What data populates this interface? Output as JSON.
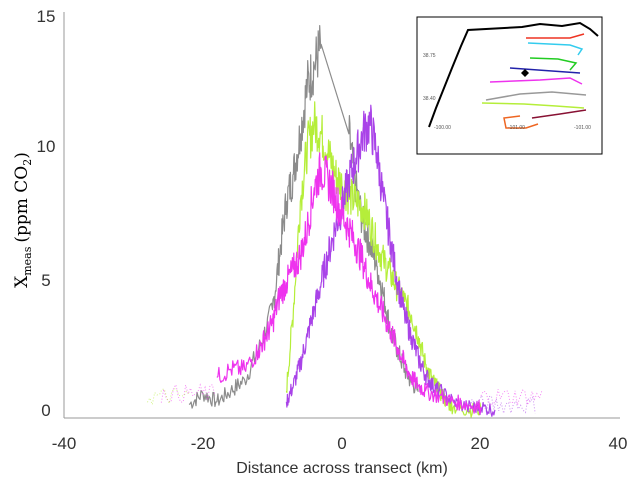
{
  "chart_data": {
    "type": "line",
    "title": "",
    "xlabel": "Distance across transect (km)",
    "ylabel": {
      "symbol": "X",
      "subscript": "meas",
      "unit_prefix": "(ppm CO",
      "unit_sub": "2",
      "unit_suffix": ")"
    },
    "xlim": [
      -40,
      40
    ],
    "ylim": [
      0,
      15
    ],
    "x_ticks": [
      "-40",
      "-20",
      "0",
      "20",
      "40"
    ],
    "y_ticks": [
      "0",
      "5",
      "10",
      "15"
    ],
    "grid": false,
    "legend": "none",
    "series": [
      {
        "color": "#8c8c8c",
        "points": [
          [
            -22,
            0.5
          ],
          [
            -20,
            0.9
          ],
          [
            -18,
            0.6
          ],
          [
            -16,
            1.0
          ],
          [
            -14,
            1.4
          ],
          [
            -12,
            2.5
          ],
          [
            -10,
            4.0
          ],
          [
            -9,
            6.0
          ],
          [
            -8,
            8.0
          ],
          [
            -7,
            9.0
          ],
          [
            -6,
            10.5
          ],
          [
            -5,
            12.3
          ],
          [
            -4,
            13.0
          ],
          [
            -3,
            13.8
          ],
          [
            1,
            10.5
          ],
          [
            2,
            8.5
          ],
          [
            3,
            7.2
          ],
          [
            4,
            6.5
          ],
          [
            5,
            5.6
          ],
          [
            6,
            4.5
          ],
          [
            7,
            3.2
          ],
          [
            8,
            2.5
          ],
          [
            9,
            1.8
          ],
          [
            10,
            1.3
          ],
          [
            11,
            1.0
          ]
        ]
      },
      {
        "color": "#b5ee3a",
        "points": [
          [
            -8,
            1.0
          ],
          [
            -7,
            4.0
          ],
          [
            -6,
            8.0
          ],
          [
            -5,
            10.0
          ],
          [
            -4,
            10.9
          ],
          [
            -3,
            10.5
          ],
          [
            -2,
            9.8
          ],
          [
            -1,
            9.0
          ],
          [
            0,
            8.6
          ],
          [
            1,
            8.2
          ],
          [
            2,
            8.0
          ],
          [
            3,
            7.8
          ],
          [
            4,
            7.2
          ],
          [
            5,
            6.4
          ],
          [
            6,
            5.8
          ],
          [
            7,
            5.3
          ],
          [
            8,
            4.8
          ],
          [
            9,
            4.3
          ],
          [
            10,
            3.8
          ],
          [
            11,
            3.0
          ],
          [
            12,
            2.0
          ],
          [
            13,
            1.4
          ],
          [
            14,
            1.0
          ],
          [
            15,
            0.6
          ],
          [
            16,
            0.4
          ],
          [
            18,
            0.3
          ],
          [
            20,
            0.3
          ]
        ]
      },
      {
        "color": "#a943e8",
        "points": [
          [
            -8,
            0.6
          ],
          [
            -7,
            1.2
          ],
          [
            -6,
            2.0
          ],
          [
            -5,
            3.0
          ],
          [
            -4,
            4.0
          ],
          [
            -3,
            5.0
          ],
          [
            -2,
            6.0
          ],
          [
            -1,
            7.0
          ],
          [
            0,
            7.8
          ],
          [
            1,
            8.8
          ],
          [
            2,
            9.6
          ],
          [
            3,
            10.5
          ],
          [
            4,
            10.9
          ],
          [
            5,
            9.8
          ],
          [
            6,
            8.0
          ],
          [
            7,
            6.5
          ],
          [
            8,
            5.0
          ],
          [
            9,
            3.8
          ],
          [
            10,
            3.0
          ],
          [
            11,
            2.2
          ],
          [
            12,
            1.6
          ],
          [
            13,
            1.2
          ],
          [
            14,
            1.0
          ],
          [
            16,
            0.6
          ],
          [
            18,
            0.4
          ],
          [
            20,
            0.4
          ],
          [
            22,
            0.3
          ]
        ]
      },
      {
        "color": "#ee33ee",
        "points": [
          [
            -18,
            1.5
          ],
          [
            -16,
            1.8
          ],
          [
            -14,
            1.8
          ],
          [
            -12,
            2.5
          ],
          [
            -11,
            3.0
          ],
          [
            -10,
            3.5
          ],
          [
            -9,
            4.5
          ],
          [
            -8,
            5.0
          ],
          [
            -7,
            5.5
          ],
          [
            -6,
            6.0
          ],
          [
            -5,
            7.0
          ],
          [
            -4,
            8.5
          ],
          [
            -3,
            9.2
          ],
          [
            -2,
            8.8
          ],
          [
            -1,
            8.2
          ],
          [
            0,
            7.5
          ],
          [
            1,
            7.0
          ],
          [
            2,
            6.4
          ],
          [
            3,
            5.8
          ],
          [
            4,
            5.0
          ],
          [
            5,
            4.4
          ],
          [
            6,
            3.8
          ],
          [
            7,
            3.2
          ],
          [
            8,
            2.6
          ],
          [
            9,
            2.0
          ],
          [
            10,
            1.5
          ],
          [
            11,
            1.2
          ],
          [
            12,
            1.0
          ],
          [
            14,
            0.8
          ],
          [
            16,
            0.6
          ],
          [
            18,
            0.5
          ],
          [
            20,
            0.4
          ]
        ]
      }
    ],
    "dotted_tails": [
      {
        "color": "#ee33ee",
        "x_range": [
          -26,
          -18
        ],
        "level": 0.9
      },
      {
        "color": "#b5ee3a",
        "x_range": [
          -28,
          -22
        ],
        "level": 0.8
      },
      {
        "color": "#ee33ee",
        "x_range": [
          20,
          29
        ],
        "level": 0.8
      },
      {
        "color": "#a943e8",
        "x_range": [
          18,
          28
        ],
        "level": 0.5
      }
    ]
  },
  "inset": {
    "y_ticks": [
      "38.75",
      "38.40"
    ],
    "x_ticks": [
      "-100.00",
      "-101.00",
      "-101.00"
    ],
    "track_colors": [
      "#000000",
      "#ee3322",
      "#33ccee",
      "#22cc22",
      "#2222aa",
      "#ee33ee",
      "#999999",
      "#b5ee3a",
      "#ee6622",
      "#881133"
    ]
  }
}
